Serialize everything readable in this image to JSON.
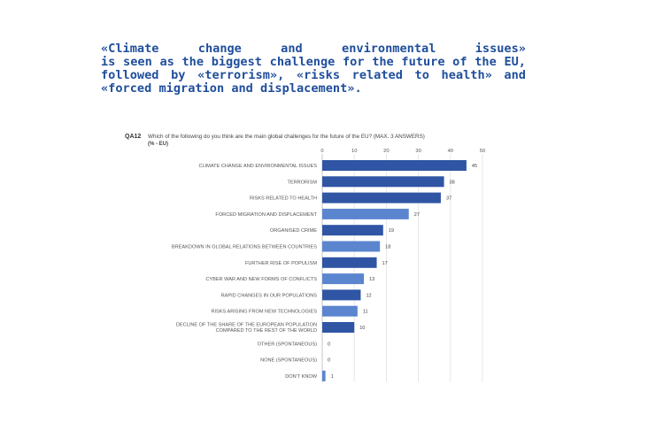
{
  "headline": {
    "lines": [
      "«Climate change and environmental issues»",
      "is seen as the biggest challenge for the future of the EU,",
      "followed by «terrorism», «risks related to health» and",
      "«forced migration and displacement»."
    ]
  },
  "question": {
    "code": "QA12",
    "text": "Which of the following do you think are the main global challenges for the future of the EU? (MAX. 3 ANSWERS)",
    "unit": "(% - EU)"
  },
  "colors": {
    "dark_bar": "#2f55a4",
    "light_bar": "#5b85cf"
  },
  "chart_data": {
    "type": "bar",
    "orientation": "horizontal",
    "title": "Which of the following do you think are the main global challenges for the future of the EU? (MAX. 3 ANSWERS)",
    "xlim": [
      0,
      50
    ],
    "xticks": [
      0,
      10,
      20,
      30,
      40,
      50
    ],
    "grid": true,
    "categories": [
      "CLIMATE CHANGE AND ENVIRONMENTAL ISSUES",
      "TERRORISM",
      "RISKS RELATED TO HEALTH",
      "FORCED MIGRATION AND DISPLACEMENT",
      "ORGANISED CRIME",
      "BREAKDOWN IN GLOBAL RELATIONS BETWEEN COUNTRIES",
      "FURTHER RISE OF POPULISM",
      "CYBER WAR AND NEW FORMS OF CONFLICTS",
      "RAPID CHANGES IN OUR POPULATIONS",
      "RISKS ARISING FROM NEW TECHNOLOGIES",
      "DECLINE OF THE SHARE OF THE EUROPEAN POPULATION COMPARED TO THE REST OF THE WORLD",
      "OTHER (SPONTANEOUS)",
      "NONE (SPONTANEOUS)",
      "DON'T KNOW"
    ],
    "label_lines": [
      [
        "CLIMATE CHANGE AND ENVIRONMENTAL ISSUES"
      ],
      [
        "TERRORISM"
      ],
      [
        "RISKS RELATED TO HEALTH"
      ],
      [
        "FORCED MIGRATION AND DISPLACEMENT"
      ],
      [
        "ORGANISED CRIME"
      ],
      [
        "BREAKDOWN IN GLOBAL RELATIONS BETWEEN COUNTRIES"
      ],
      [
        "FURTHER RISE OF POPULISM"
      ],
      [
        "CYBER WAR AND NEW FORMS OF CONFLICTS"
      ],
      [
        "RAPID CHANGES IN OUR POPULATIONS"
      ],
      [
        "RISKS ARISING FROM NEW TECHNOLOGIES"
      ],
      [
        "DECLINE OF THE SHARE OF THE EUROPEAN POPULATION",
        "COMPARED TO THE REST OF THE WORLD"
      ],
      [
        "OTHER (SPONTANEOUS)"
      ],
      [
        "NONE (SPONTANEOUS)"
      ],
      [
        "DON'T KNOW"
      ]
    ],
    "values": [
      45,
      38,
      37,
      27,
      19,
      18,
      17,
      13,
      12,
      11,
      10,
      0,
      0,
      1
    ],
    "shade": [
      "dark",
      "dark",
      "dark",
      "light",
      "dark",
      "light",
      "dark",
      "light",
      "dark",
      "light",
      "dark",
      "light",
      "dark",
      "light"
    ]
  }
}
